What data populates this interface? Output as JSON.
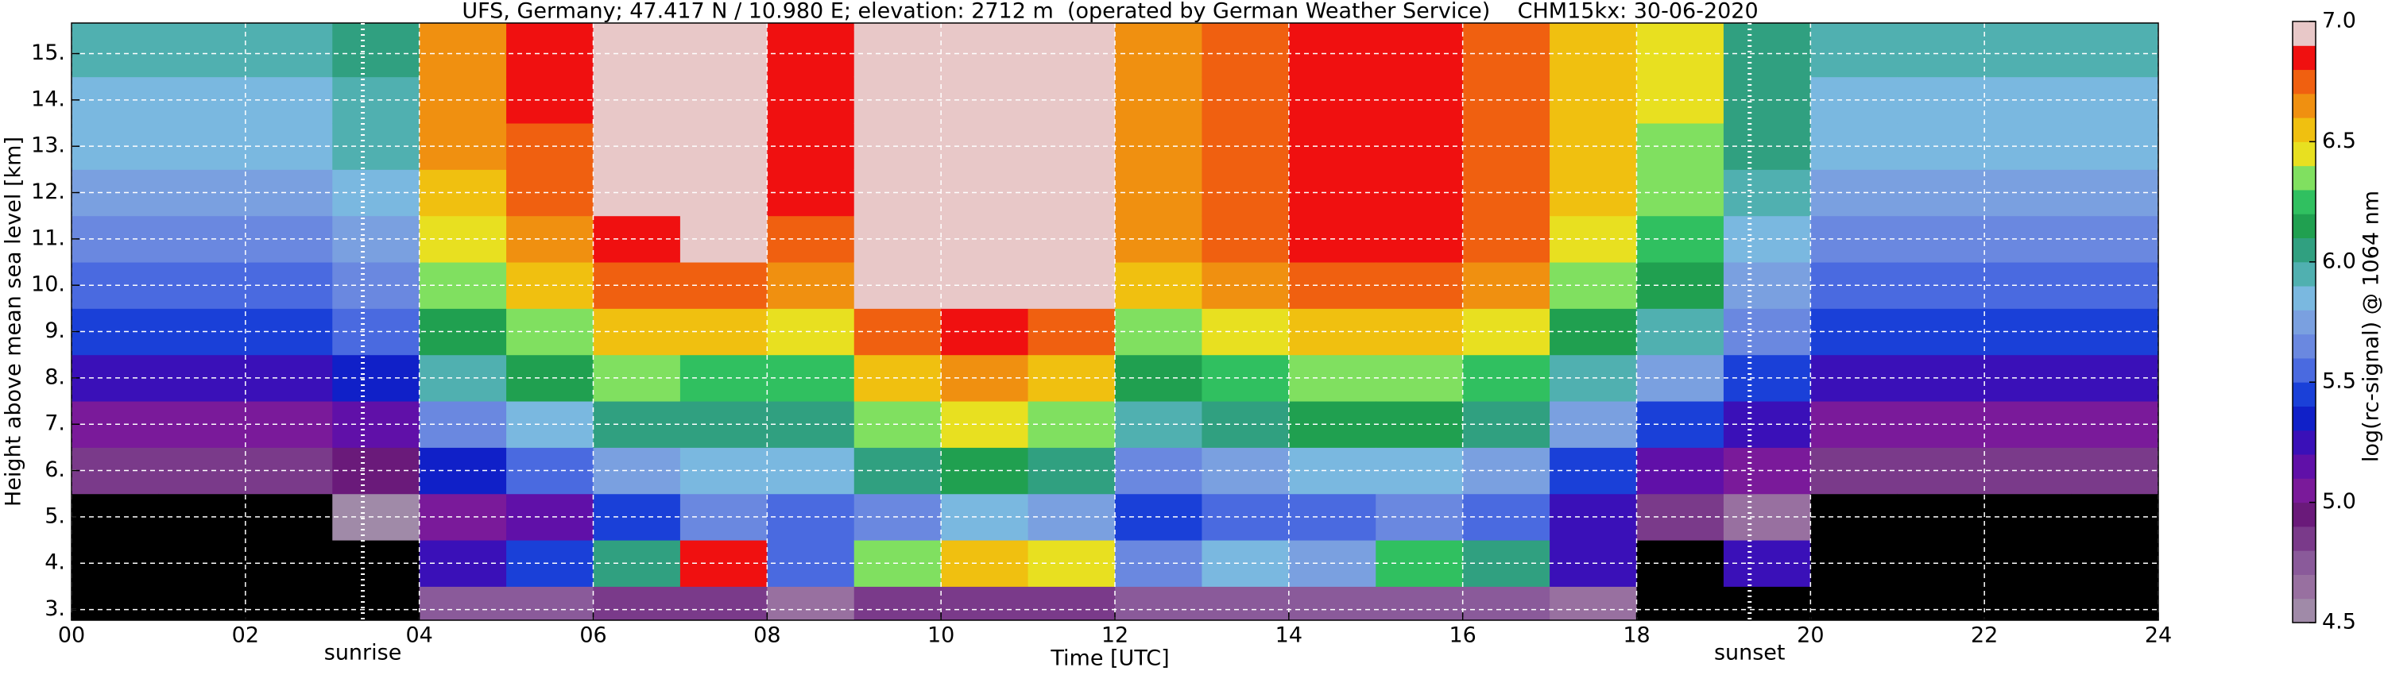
{
  "chart_data": {
    "type": "heatmap",
    "title": "UFS, Germany; 47.417 N / 10.980 E; elevation: 2712 m  (operated by German Weather Service)    CHM15kx: 30-06-2020",
    "x_label": "Time [UTC]",
    "y_label": "Height above mean sea level [km]",
    "colorbar_label": "log(rc-signal) @ 1064 nm",
    "xlim": [
      0,
      24
    ],
    "ylim": [
      2.77,
      15.66
    ],
    "xticks": [
      {
        "value": 0,
        "label": "00"
      },
      {
        "value": 2,
        "label": "02"
      },
      {
        "value": 4,
        "label": "04"
      },
      {
        "value": 6,
        "label": "06"
      },
      {
        "value": 8,
        "label": "08"
      },
      10,
      12,
      14,
      16,
      18,
      20,
      22,
      24
    ],
    "yticks": [
      {
        "value": 3,
        "label": "3."
      },
      {
        "value": 4,
        "label": "4."
      },
      {
        "value": 5,
        "label": "5."
      },
      {
        "value": 6,
        "label": "6."
      },
      {
        "value": 7,
        "label": "7."
      },
      {
        "value": 8,
        "label": "8."
      },
      {
        "value": 9,
        "label": "9."
      },
      {
        "value": 10,
        "label": "10."
      },
      {
        "value": 11,
        "label": "11."
      },
      {
        "value": 12,
        "label": "12."
      },
      {
        "value": 13,
        "label": "13."
      },
      {
        "value": 14,
        "label": "14."
      },
      {
        "value": 15,
        "label": "15."
      }
    ],
    "grid": true,
    "grid_color": "#ffffff",
    "background": "#000000",
    "xbins": [
      0,
      1,
      2,
      3,
      4,
      5,
      6,
      7,
      8,
      9,
      10,
      11,
      12,
      13,
      14,
      15,
      16,
      17,
      18,
      19,
      20,
      21,
      22,
      23,
      24
    ],
    "ybins": [
      2.5,
      3.5,
      4.5,
      5.5,
      6.5,
      7.5,
      8.5,
      9.5,
      10.5,
      11.5,
      12.5,
      13.5,
      14.5,
      15.5,
      16.5
    ],
    "values": [
      [
        4.3,
        4.3,
        4.4,
        4.8,
        5.0,
        5.2,
        5.4,
        5.5,
        5.6,
        5.7,
        5.8,
        5.8,
        5.9,
        5.9
      ],
      [
        4.3,
        4.3,
        4.4,
        4.8,
        5.0,
        5.2,
        5.4,
        5.5,
        5.6,
        5.7,
        5.8,
        5.8,
        5.9,
        5.9
      ],
      [
        4.3,
        4.3,
        4.4,
        4.8,
        5.0,
        5.2,
        5.4,
        5.5,
        5.6,
        5.7,
        5.8,
        5.8,
        5.9,
        5.9
      ],
      [
        4.3,
        4.4,
        4.5,
        4.9,
        5.1,
        5.3,
        5.5,
        5.6,
        5.7,
        5.8,
        5.9,
        5.9,
        6.0,
        6.0
      ],
      [
        4.7,
        5.2,
        5.0,
        5.3,
        5.6,
        5.9,
        6.1,
        6.3,
        6.4,
        6.5,
        6.6,
        6.6,
        6.6,
        6.6
      ],
      [
        4.7,
        5.4,
        5.1,
        5.5,
        5.8,
        6.1,
        6.3,
        6.5,
        6.6,
        6.7,
        6.7,
        6.8,
        6.8,
        6.8
      ],
      [
        4.8,
        6.0,
        5.4,
        5.7,
        6.0,
        6.3,
        6.5,
        6.7,
        6.8,
        6.9,
        6.9,
        6.9,
        6.9,
        6.9
      ],
      [
        4.8,
        6.8,
        5.6,
        5.8,
        6.0,
        6.2,
        6.5,
        6.7,
        6.9,
        6.9,
        6.9,
        6.9,
        6.9,
        6.9
      ],
      [
        4.6,
        5.5,
        5.5,
        5.8,
        6.0,
        6.2,
        6.4,
        6.6,
        6.7,
        6.8,
        6.8,
        6.8,
        6.8,
        6.8
      ],
      [
        4.8,
        6.3,
        5.6,
        6.0,
        6.3,
        6.5,
        6.7,
        6.9,
        6.9,
        6.9,
        6.9,
        6.9,
        6.9,
        6.9
      ],
      [
        4.8,
        6.5,
        5.8,
        6.1,
        6.4,
        6.6,
        6.8,
        6.9,
        6.9,
        6.9,
        6.9,
        6.9,
        6.9,
        6.9
      ],
      [
        4.8,
        6.4,
        5.7,
        6.0,
        6.3,
        6.5,
        6.7,
        6.9,
        6.9,
        6.9,
        6.9,
        6.9,
        6.9,
        6.9
      ],
      [
        4.7,
        5.6,
        5.4,
        5.6,
        5.9,
        6.1,
        6.3,
        6.5,
        6.6,
        6.6,
        6.6,
        6.6,
        6.6,
        6.6
      ],
      [
        4.7,
        5.8,
        5.5,
        5.7,
        6.0,
        6.2,
        6.4,
        6.6,
        6.7,
        6.7,
        6.7,
        6.7,
        6.7,
        6.7
      ],
      [
        4.7,
        5.7,
        5.5,
        5.8,
        6.1,
        6.3,
        6.5,
        6.7,
        6.8,
        6.8,
        6.8,
        6.8,
        6.8,
        6.8
      ],
      [
        4.7,
        6.2,
        5.6,
        5.8,
        6.1,
        6.3,
        6.5,
        6.7,
        6.8,
        6.8,
        6.8,
        6.8,
        6.8,
        6.8
      ],
      [
        4.7,
        6.0,
        5.5,
        5.7,
        6.0,
        6.2,
        6.4,
        6.6,
        6.7,
        6.7,
        6.7,
        6.7,
        6.7,
        6.7
      ],
      [
        4.6,
        5.2,
        5.2,
        5.4,
        5.7,
        5.9,
        6.1,
        6.3,
        6.4,
        6.5,
        6.5,
        6.5,
        6.5,
        6.5
      ],
      [
        4.3,
        4.4,
        4.8,
        5.1,
        5.4,
        5.7,
        5.9,
        6.1,
        6.2,
        6.3,
        6.3,
        6.4,
        6.4,
        6.4
      ],
      [
        4.4,
        5.2,
        4.6,
        5.0,
        5.2,
        5.4,
        5.6,
        5.7,
        5.8,
        5.9,
        6.0,
        6.0,
        6.0,
        6.0
      ],
      [
        4.3,
        4.3,
        4.4,
        4.8,
        5.0,
        5.2,
        5.4,
        5.5,
        5.6,
        5.7,
        5.8,
        5.8,
        5.9,
        5.9
      ],
      [
        4.3,
        4.3,
        4.4,
        4.8,
        5.0,
        5.2,
        5.4,
        5.5,
        5.6,
        5.7,
        5.8,
        5.8,
        5.9,
        5.9
      ],
      [
        4.3,
        4.3,
        4.4,
        4.8,
        5.0,
        5.2,
        5.4,
        5.5,
        5.6,
        5.7,
        5.8,
        5.8,
        5.9,
        5.9
      ],
      [
        4.3,
        4.3,
        4.4,
        4.8,
        5.0,
        5.2,
        5.4,
        5.5,
        5.6,
        5.7,
        5.8,
        5.8,
        5.9,
        5.9
      ]
    ],
    "clim": [
      4.5,
      7.0
    ],
    "under_color": "#000000",
    "colors": [
      "#a08aa8",
      "#9870a0",
      "#8a5a9a",
      "#7a3a8a",
      "#6a1a7a",
      "#7a1a9a",
      "#6010a8",
      "#3a10b8",
      "#1020c8",
      "#1a40d8",
      "#4a6ae0",
      "#6a88e0",
      "#7aa0e0",
      "#7ab8e0",
      "#50b0b0",
      "#30a080",
      "#20a050",
      "#30c060",
      "#80e060",
      "#e8e020",
      "#f0c010",
      "#f09010",
      "#f06010",
      "#f01010",
      "#e8c8c8"
    ],
    "cticks": [
      4.5,
      {
        "value": 5,
        "label": "5.0"
      },
      5.5,
      {
        "value": 6,
        "label": "6.0"
      },
      6.5,
      {
        "value": 7,
        "label": "7.0"
      }
    ],
    "annotations": [
      {
        "x": 3.35,
        "label": "sunrise"
      },
      {
        "x": 19.3,
        "label": "sunset"
      }
    ]
  }
}
